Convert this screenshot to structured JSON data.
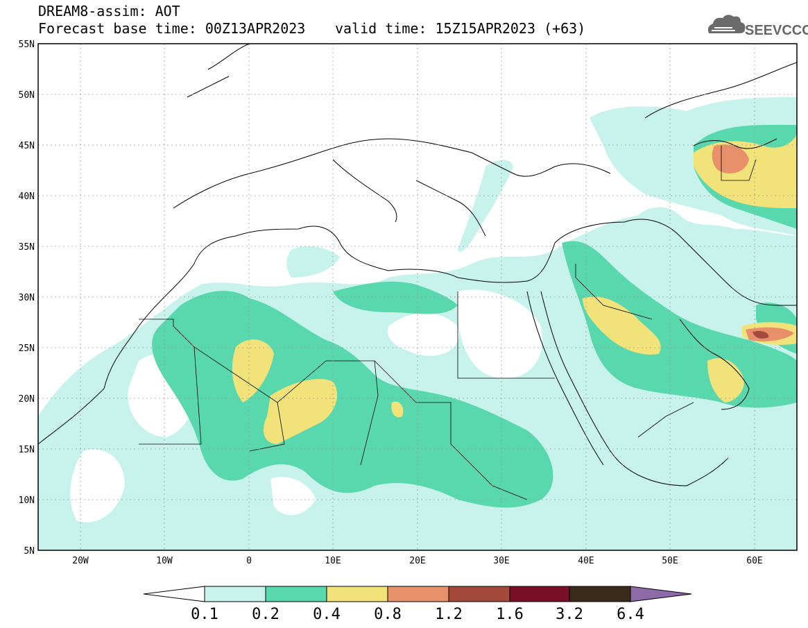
{
  "header": {
    "title": "DREAM8-assim: AOT",
    "base_time": "Forecast base time: 00Z13APR2023",
    "valid_time": "valid time: 15Z15APR2023 (+63)",
    "logo_text": "SEEVCCC"
  },
  "map": {
    "lat_ticks": [
      "55N",
      "50N",
      "45N",
      "40N",
      "35N",
      "30N",
      "25N",
      "20N",
      "15N",
      "10N",
      "5N"
    ],
    "lon_ticks": [
      "20W",
      "10W",
      "0",
      "10E",
      "20E",
      "30E",
      "40E",
      "50E",
      "60E"
    ],
    "lat_range": [
      5,
      55
    ],
    "lon_range": [
      -25,
      65
    ],
    "grid": true
  },
  "colorbar": {
    "labels": [
      "0.1",
      "0.2",
      "0.4",
      "0.8",
      "1.2",
      "1.6",
      "3.2",
      "6.4"
    ],
    "colors": [
      "#c8f3ec",
      "#5ad8ad",
      "#f2e27a",
      "#e8906a",
      "#a34a3c",
      "#7a0f2a",
      "#3b2a1a",
      "#8f6aa8"
    ]
  },
  "palette": {
    "c1": "#c8f3ec",
    "c2": "#5ad8ad",
    "c3": "#f2e27a",
    "c4": "#e8906a",
    "c5": "#a34a3c",
    "c6": "#7a0f2a"
  }
}
